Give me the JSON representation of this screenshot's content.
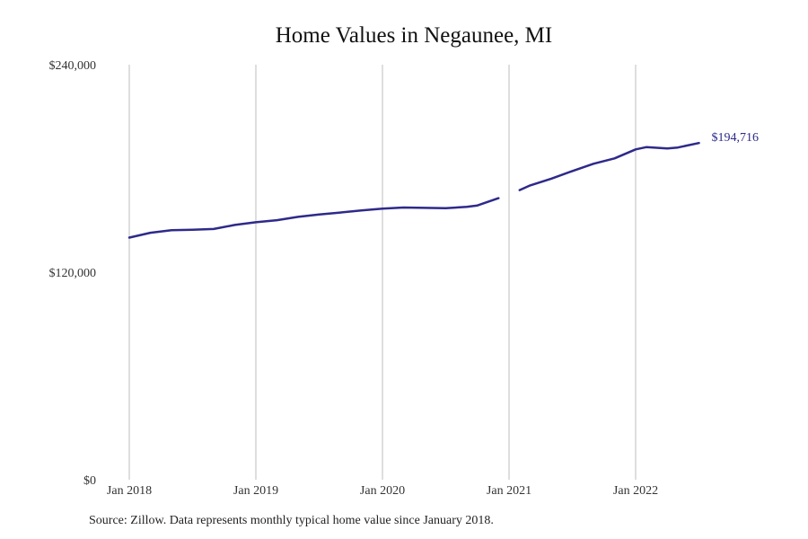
{
  "chart_data": {
    "type": "line",
    "title": "Home Values in Negaunee, MI",
    "xlabel": "",
    "ylabel": "",
    "source_note": "Source: Zillow. Data represents monthly typical home value since January 2018.",
    "y_ticks": [
      {
        "value": 0,
        "label": "$0"
      },
      {
        "value": 120000,
        "label": "$120,000"
      },
      {
        "value": 240000,
        "label": "$240,000"
      }
    ],
    "x_ticks": [
      {
        "value": "2018-01",
        "label": "Jan 2018"
      },
      {
        "value": "2019-01",
        "label": "Jan 2019"
      },
      {
        "value": "2020-01",
        "label": "Jan 2020"
      },
      {
        "value": "2021-01",
        "label": "Jan 2021"
      },
      {
        "value": "2022-01",
        "label": "Jan 2022"
      }
    ],
    "ylim": [
      0,
      240000
    ],
    "xlim": [
      "2018-01",
      "2022-12"
    ],
    "grid": "vertical lines at x ticks",
    "line_color": "#2e2a8a",
    "end_label": "$194,716",
    "series": [
      {
        "segments": [
          [
            {
              "x": "2018-01",
              "y": 140000
            },
            {
              "x": "2018-03",
              "y": 142800
            },
            {
              "x": "2018-05",
              "y": 144300
            },
            {
              "x": "2018-07",
              "y": 144500
            },
            {
              "x": "2018-09",
              "y": 145000
            },
            {
              "x": "2018-11",
              "y": 147300
            },
            {
              "x": "2019-01",
              "y": 148900
            },
            {
              "x": "2019-03",
              "y": 150100
            },
            {
              "x": "2019-05",
              "y": 152000
            },
            {
              "x": "2019-07",
              "y": 153400
            },
            {
              "x": "2019-09",
              "y": 154500
            },
            {
              "x": "2019-11",
              "y": 155700
            },
            {
              "x": "2020-01",
              "y": 156800
            },
            {
              "x": "2020-03",
              "y": 157400
            },
            {
              "x": "2020-05",
              "y": 157200
            },
            {
              "x": "2020-07",
              "y": 157000
            },
            {
              "x": "2020-09",
              "y": 157800
            },
            {
              "x": "2020-10",
              "y": 158600
            },
            {
              "x": "2020-12",
              "y": 162800
            }
          ],
          [
            {
              "x": "2021-02",
              "y": 167500
            },
            {
              "x": "2021-03",
              "y": 170200
            },
            {
              "x": "2021-05",
              "y": 174100
            },
            {
              "x": "2021-07",
              "y": 178500
            },
            {
              "x": "2021-09",
              "y": 182700
            },
            {
              "x": "2021-11",
              "y": 185800
            },
            {
              "x": "2022-01",
              "y": 191000
            },
            {
              "x": "2022-02",
              "y": 192300
            },
            {
              "x": "2022-04",
              "y": 191600
            },
            {
              "x": "2022-05",
              "y": 192100
            },
            {
              "x": "2022-07",
              "y": 194716
            }
          ]
        ]
      }
    ]
  }
}
